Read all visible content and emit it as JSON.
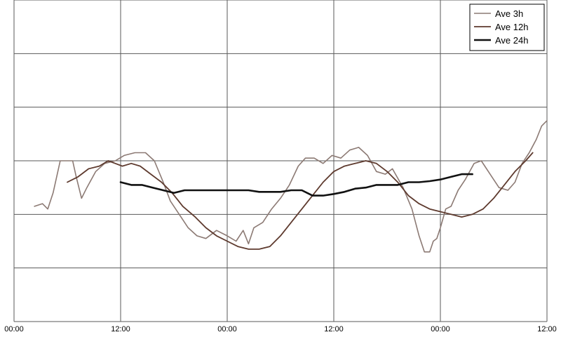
{
  "chart_data": {
    "type": "line",
    "title": "",
    "xlabel": "",
    "ylabel": "",
    "x_range_hours": [
      0,
      60
    ],
    "x_ticks": [
      {
        "hour": 0,
        "label": "00:00"
      },
      {
        "hour": 12,
        "label": "12:00"
      },
      {
        "hour": 24,
        "label": "00:00"
      },
      {
        "hour": 36,
        "label": "12:00"
      },
      {
        "hour": 48,
        "label": "00:00"
      },
      {
        "hour": 60,
        "label": "12:00"
      }
    ],
    "y_range": [
      0,
      6
    ],
    "y_gridlines": [
      0,
      1,
      2,
      3,
      4,
      5,
      6
    ],
    "y_tick_labels_visible": false,
    "grid": true,
    "legend_position": "top-right",
    "series": [
      {
        "name": "Ave 3h",
        "color": "#8c7a74",
        "stroke": "thin",
        "x": [
          2.3,
          3.2,
          3.8,
          4.4,
          5.2,
          5.8,
          6.6,
          7.0,
          7.6,
          8.2,
          9.2,
          10.2,
          11.4,
          12.4,
          13.6,
          14.8,
          15.8,
          16.8,
          17.6,
          18.6,
          19.6,
          20.6,
          21.6,
          22.8,
          24.0,
          25.0,
          25.8,
          26.4,
          27.0,
          28.0,
          29.0,
          30.0,
          31.0,
          32.0,
          32.8,
          33.8,
          34.8,
          35.8,
          36.8,
          37.8,
          38.8,
          39.8,
          40.8,
          41.8,
          42.6,
          43.8,
          44.8,
          45.6,
          46.2,
          46.8,
          47.2,
          47.6,
          48.0,
          48.6,
          49.2,
          50.0,
          50.8,
          51.8,
          52.6,
          53.6,
          54.6,
          55.6,
          56.4,
          57.2,
          58.0,
          58.8,
          59.4,
          60.0
        ],
        "y": [
          2.15,
          2.2,
          2.1,
          2.4,
          3.0,
          3.0,
          3.0,
          2.7,
          2.3,
          2.5,
          2.8,
          2.95,
          3.0,
          3.1,
          3.15,
          3.15,
          3.0,
          2.6,
          2.25,
          2.0,
          1.75,
          1.6,
          1.55,
          1.7,
          1.6,
          1.5,
          1.7,
          1.45,
          1.75,
          1.85,
          2.1,
          2.3,
          2.55,
          2.9,
          3.05,
          3.05,
          2.95,
          3.1,
          3.05,
          3.2,
          3.25,
          3.1,
          2.8,
          2.75,
          2.85,
          2.5,
          2.1,
          1.6,
          1.3,
          1.3,
          1.5,
          1.55,
          1.75,
          2.1,
          2.15,
          2.45,
          2.65,
          2.95,
          3.0,
          2.75,
          2.5,
          2.45,
          2.6,
          2.95,
          3.15,
          3.4,
          3.65,
          3.75
        ]
      },
      {
        "name": "Ave 12h",
        "color": "#5e3a2e",
        "stroke": "medium",
        "x": [
          6.0,
          7.2,
          8.4,
          9.6,
          10.6,
          11.4,
          12.2,
          13.2,
          14.2,
          15.4,
          16.6,
          17.8,
          19.0,
          20.4,
          21.6,
          22.8,
          24.0,
          25.2,
          26.4,
          27.6,
          28.8,
          30.0,
          31.2,
          32.4,
          33.6,
          34.8,
          36.0,
          37.2,
          38.4,
          39.6,
          40.8,
          42.0,
          43.2,
          44.4,
          45.6,
          46.8,
          48.0,
          49.2,
          50.4,
          51.6,
          52.8,
          54.0,
          55.2,
          56.4,
          57.6,
          58.4
        ],
        "y": [
          2.6,
          2.7,
          2.85,
          2.9,
          3.0,
          2.95,
          2.9,
          2.95,
          2.9,
          2.75,
          2.6,
          2.4,
          2.15,
          1.95,
          1.75,
          1.6,
          1.5,
          1.4,
          1.35,
          1.35,
          1.4,
          1.6,
          1.85,
          2.1,
          2.35,
          2.6,
          2.8,
          2.9,
          2.95,
          3.0,
          2.95,
          2.8,
          2.6,
          2.35,
          2.2,
          2.1,
          2.05,
          2.0,
          1.95,
          2.0,
          2.1,
          2.3,
          2.55,
          2.8,
          3.0,
          3.15
        ]
      },
      {
        "name": "Ave 24h",
        "color": "#111111",
        "stroke": "thick",
        "x": [
          12.0,
          13.2,
          14.4,
          15.6,
          16.8,
          18.0,
          19.2,
          20.4,
          21.6,
          22.8,
          24.0,
          25.2,
          26.4,
          27.6,
          28.8,
          30.0,
          31.2,
          32.4,
          33.6,
          34.8,
          36.0,
          37.2,
          38.4,
          39.6,
          40.8,
          42.0,
          43.2,
          44.4,
          45.6,
          46.8,
          48.0,
          49.2,
          50.4,
          51.6
        ],
        "y": [
          2.6,
          2.55,
          2.55,
          2.5,
          2.45,
          2.4,
          2.45,
          2.45,
          2.45,
          2.45,
          2.45,
          2.45,
          2.45,
          2.42,
          2.42,
          2.42,
          2.45,
          2.45,
          2.35,
          2.35,
          2.38,
          2.42,
          2.48,
          2.5,
          2.55,
          2.55,
          2.55,
          2.6,
          2.6,
          2.62,
          2.65,
          2.7,
          2.75,
          2.75
        ]
      }
    ]
  }
}
